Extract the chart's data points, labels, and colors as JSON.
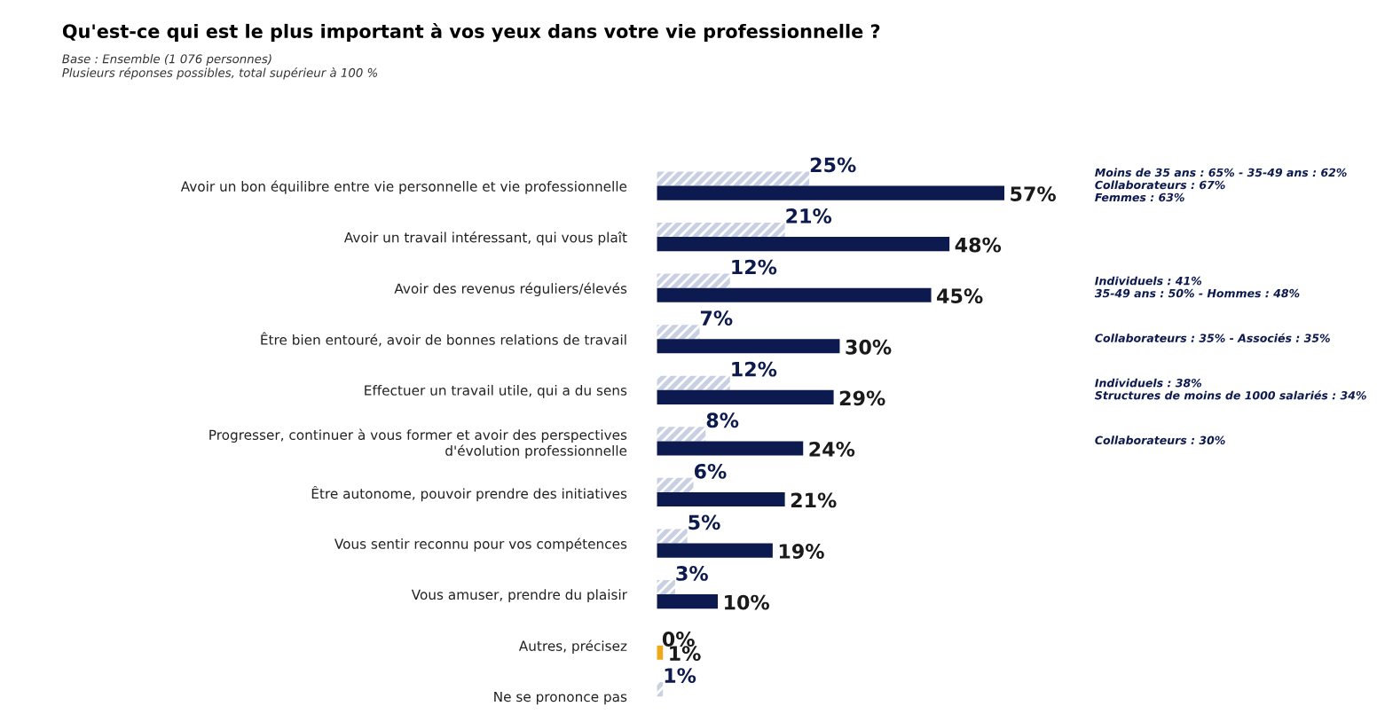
{
  "chart_data": {
    "type": "bar",
    "orientation": "horizontal",
    "title": "Qu'est-ce qui est le plus important à vos yeux dans votre vie professionnelle ?",
    "subtitle": "Base : Ensemble (1 076 personnes)\nPlusieurs réponses possibles, total supérieur à 100 %",
    "categories": [
      "Avoir un bon équilibre entre vie personnelle et vie professionnelle",
      "Avoir un travail intéressant, qui vous plaît",
      "Avoir des revenus réguliers/élevés",
      "Être bien entouré, avoir de bonnes relations de travail",
      "Effectuer un travail utile, qui a du sens",
      "Progresser, continuer à vous former et avoir des perspectives\nd'évolution professionnelle",
      "Être autonome, pouvoir prendre des initiatives",
      "Vous sentir reconnu pour vos compétences",
      "Vous amuser, prendre du plaisir",
      "Autres, précisez",
      "Ne se prononce pas"
    ],
    "series": [
      {
        "color": "#c9d0e3",
        "values": [
          25,
          21,
          12,
          7,
          12,
          8,
          6,
          5,
          3,
          0,
          1
        ],
        "value_labels": [
          "25%",
          "21%",
          "12%",
          "7%",
          "12%",
          "8%",
          "6%",
          "5%",
          "3%",
          "0%",
          "1%"
        ]
      },
      {
        "colors": [
          "#0d1a4f",
          "#0d1a4f",
          "#0d1a4f",
          "#0d1a4f",
          "#0d1a4f",
          "#0d1a4f",
          "#0d1a4f",
          "#0d1a4f",
          "#0d1a4f",
          "#f0a818",
          "#0d1a4f"
        ],
        "values": [
          57,
          48,
          45,
          30,
          29,
          24,
          21,
          19,
          10,
          1,
          null
        ],
        "value_labels": [
          "57%",
          "48%",
          "45%",
          "30%",
          "29%",
          "24%",
          "21%",
          "19%",
          "10%",
          "1%",
          null
        ]
      }
    ],
    "grid": false,
    "legend": false,
    "annotations": [
      "Moins de 35 ans : 65% - 35-49 ans : 62%\nCollaborateurs : 67%\nFemmes : 63%",
      "Individuels : 41%\n35-49 ans : 50% - Hommes : 48%",
      "Collaborateurs : 35% - Associés : 35%",
      "Individuels : 38%\nStructures de moins de 1000 salariés : 34%",
      "Collaborateurs : 30%"
    ]
  }
}
